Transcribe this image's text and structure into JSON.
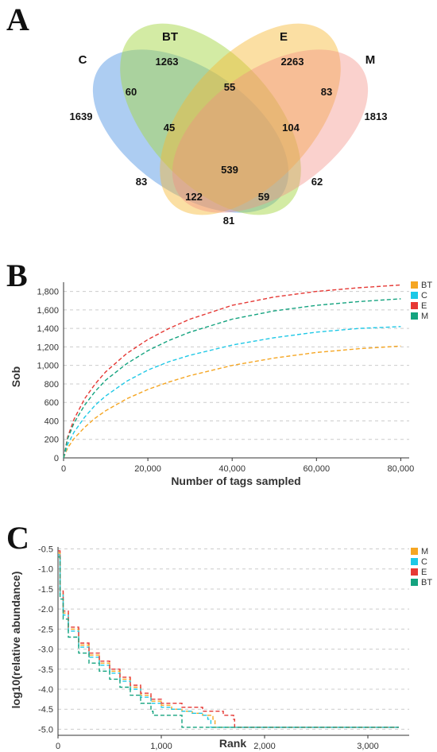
{
  "chart_data": [
    {
      "type": "venn",
      "panel": "A",
      "sets": [
        "C",
        "BT",
        "E",
        "M"
      ],
      "colors": {
        "C": "#4a90e2",
        "BT": "#a8d84a",
        "E": "#f7b733",
        "M": "#f28b82"
      },
      "regions": [
        {
          "label": "1639",
          "value": 1639,
          "sets": [
            "C"
          ]
        },
        {
          "label": "1263",
          "value": 1263,
          "sets": [
            "BT"
          ]
        },
        {
          "label": "2263",
          "value": 2263,
          "sets": [
            "E"
          ]
        },
        {
          "label": "1813",
          "value": 1813,
          "sets": [
            "M"
          ]
        },
        {
          "label": "60",
          "value": 60,
          "sets": [
            "C",
            "BT"
          ]
        },
        {
          "label": "55",
          "value": 55,
          "sets": [
            "BT",
            "E"
          ]
        },
        {
          "label": "83",
          "value": 83,
          "sets": [
            "E",
            "M"
          ]
        },
        {
          "label": "45",
          "value": 45,
          "sets": [
            "C",
            "BT",
            "E"
          ]
        },
        {
          "label": "104",
          "value": 104,
          "sets": [
            "BT",
            "E",
            "M"
          ]
        },
        {
          "label": "539",
          "value": 539,
          "sets": [
            "C",
            "BT",
            "E",
            "M"
          ]
        },
        {
          "label": "83",
          "value": 83,
          "sets": [
            "C",
            "E"
          ]
        },
        {
          "label": "62",
          "value": 62,
          "sets": [
            "BT",
            "M"
          ]
        },
        {
          "label": "122",
          "value": 122,
          "sets": [
            "C",
            "E",
            "M"
          ]
        },
        {
          "label": "59",
          "value": 59,
          "sets": [
            "C",
            "BT",
            "M"
          ]
        },
        {
          "label": "81",
          "value": 81,
          "sets": [
            "C",
            "M"
          ]
        }
      ]
    },
    {
      "type": "line",
      "panel": "B",
      "xlabel": "Number of tags sampled",
      "ylabel": "Sob",
      "xlim": [
        0,
        82000
      ],
      "ylim": [
        0,
        1900
      ],
      "xticks": [
        0,
        20000,
        40000,
        60000,
        80000
      ],
      "xtick_labels": [
        "0",
        "20,000",
        "40,000",
        "60,000",
        "80,000"
      ],
      "yticks": [
        0,
        200,
        400,
        600,
        800,
        1000,
        1200,
        1400,
        1600,
        1800
      ],
      "ytick_labels": [
        "0",
        "200",
        "400",
        "600",
        "800",
        "1,000",
        "1,200",
        "1,400",
        "1,600",
        "1,800"
      ],
      "grid": true,
      "line_style": "dashed",
      "legend_position": "top-right",
      "x": [
        0,
        1000,
        2500,
        5000,
        7500,
        10000,
        15000,
        20000,
        25000,
        30000,
        40000,
        50000,
        60000,
        70000,
        80000
      ],
      "series": [
        {
          "name": "BT",
          "color": "#f5a623",
          "values": [
            0,
            110,
            210,
            330,
            430,
            510,
            640,
            740,
            820,
            890,
            1000,
            1080,
            1140,
            1180,
            1210
          ]
        },
        {
          "name": "C",
          "color": "#1ec8e6",
          "values": [
            0,
            150,
            280,
            440,
            570,
            670,
            830,
            950,
            1040,
            1110,
            1220,
            1300,
            1360,
            1400,
            1420
          ]
        },
        {
          "name": "E",
          "color": "#e53935",
          "values": [
            0,
            230,
            420,
            640,
            800,
            930,
            1130,
            1280,
            1400,
            1500,
            1650,
            1740,
            1800,
            1840,
            1870
          ]
        },
        {
          "name": "M",
          "color": "#14a37f",
          "values": [
            0,
            210,
            380,
            570,
            720,
            840,
            1020,
            1160,
            1270,
            1360,
            1500,
            1590,
            1650,
            1690,
            1720
          ]
        }
      ]
    },
    {
      "type": "line",
      "panel": "C",
      "xlabel": "Rank",
      "ylabel": "log10(relative abundance)",
      "xlim": [
        0,
        3400
      ],
      "ylim": [
        -5.15,
        -0.45
      ],
      "xticks": [
        0,
        1000,
        2000,
        3000
      ],
      "xtick_labels": [
        "0",
        "1,000",
        "2,000",
        "3,000"
      ],
      "yticks": [
        -0.5,
        -1.0,
        -1.5,
        -2.0,
        -2.5,
        -3.0,
        -3.5,
        -4.0,
        -4.5,
        -5.0
      ],
      "ytick_labels": [
        "-0.5",
        "-1.0",
        "-1.5",
        "-2.0",
        "-2.5",
        "-3.0",
        "-3.5",
        "-4.0",
        "-4.5",
        "-5.0"
      ],
      "grid": true,
      "line_style": "dashed",
      "legend_position": "top-right",
      "series": [
        {
          "name": "M",
          "color": "#f5a623",
          "points": [
            [
              1,
              -0.6
            ],
            [
              20,
              -1.6
            ],
            [
              50,
              -2.1
            ],
            [
              100,
              -2.5
            ],
            [
              200,
              -2.9
            ],
            [
              300,
              -3.15
            ],
            [
              400,
              -3.35
            ],
            [
              500,
              -3.55
            ],
            [
              600,
              -3.75
            ],
            [
              700,
              -3.95
            ],
            [
              800,
              -4.15
            ],
            [
              900,
              -4.3
            ],
            [
              1000,
              -4.4
            ],
            [
              1100,
              -4.5
            ],
            [
              1200,
              -4.55
            ],
            [
              1300,
              -4.6
            ],
            [
              1400,
              -4.65
            ],
            [
              1500,
              -4.75
            ],
            [
              1520,
              -4.95
            ],
            [
              3300,
              -4.95
            ]
          ]
        },
        {
          "name": "C",
          "color": "#1ec8e6",
          "points": [
            [
              1,
              -0.65
            ],
            [
              20,
              -1.65
            ],
            [
              50,
              -2.15
            ],
            [
              100,
              -2.55
            ],
            [
              200,
              -2.95
            ],
            [
              300,
              -3.2
            ],
            [
              400,
              -3.4
            ],
            [
              500,
              -3.6
            ],
            [
              600,
              -3.8
            ],
            [
              700,
              -4.0
            ],
            [
              800,
              -4.2
            ],
            [
              900,
              -4.35
            ],
            [
              1000,
              -4.45
            ],
            [
              1100,
              -4.5
            ],
            [
              1200,
              -4.55
            ],
            [
              1300,
              -4.6
            ],
            [
              1400,
              -4.65
            ],
            [
              1450,
              -4.75
            ],
            [
              1480,
              -4.95
            ],
            [
              3300,
              -4.95
            ]
          ]
        },
        {
          "name": "E",
          "color": "#e53935",
          "points": [
            [
              1,
              -0.55
            ],
            [
              20,
              -1.55
            ],
            [
              50,
              -2.05
            ],
            [
              100,
              -2.45
            ],
            [
              200,
              -2.85
            ],
            [
              300,
              -3.1
            ],
            [
              400,
              -3.3
            ],
            [
              500,
              -3.5
            ],
            [
              600,
              -3.7
            ],
            [
              700,
              -3.9
            ],
            [
              800,
              -4.1
            ],
            [
              900,
              -4.25
            ],
            [
              1000,
              -4.35
            ],
            [
              1200,
              -4.45
            ],
            [
              1400,
              -4.55
            ],
            [
              1600,
              -4.65
            ],
            [
              1700,
              -4.75
            ],
            [
              1710,
              -4.95
            ],
            [
              3300,
              -4.95
            ]
          ]
        },
        {
          "name": "BT",
          "color": "#14a37f",
          "points": [
            [
              1,
              -0.7
            ],
            [
              20,
              -1.75
            ],
            [
              50,
              -2.25
            ],
            [
              100,
              -2.7
            ],
            [
              200,
              -3.1
            ],
            [
              300,
              -3.35
            ],
            [
              400,
              -3.55
            ],
            [
              500,
              -3.75
            ],
            [
              600,
              -3.95
            ],
            [
              700,
              -4.15
            ],
            [
              800,
              -4.35
            ],
            [
              900,
              -4.55
            ],
            [
              920,
              -4.65
            ],
            [
              1180,
              -4.65
            ],
            [
              1200,
              -4.95
            ],
            [
              3300,
              -4.95
            ]
          ]
        }
      ]
    }
  ]
}
